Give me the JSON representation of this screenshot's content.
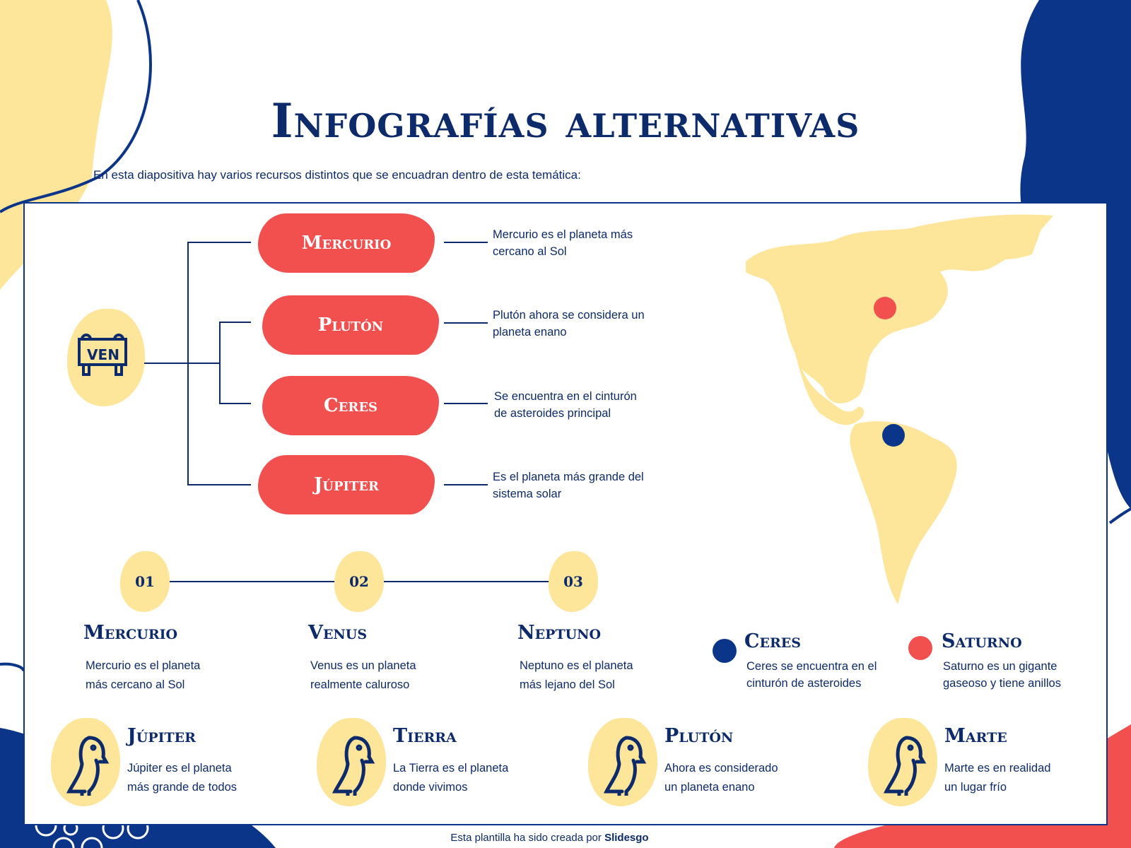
{
  "title": "Infografías alternativas",
  "subtitle": "En esta diapositiva hay varios recursos distintos que se encuadran dentro de esta temática:",
  "badge": {
    "label": "VEN",
    "icon": "sign-board-icon"
  },
  "tree": [
    {
      "label": "Mercurio",
      "desc": [
        "Mercurio es el planeta más",
        "cercano al Sol"
      ]
    },
    {
      "label": "Plutón",
      "desc": [
        "Plutón ahora se considera un",
        "planeta enano"
      ]
    },
    {
      "label": "Ceres",
      "desc": [
        "Se encuentra en el cinturón",
        "de asteroides principal"
      ]
    },
    {
      "label": "Júpiter",
      "desc": [
        "Es el planeta más grande del",
        "sistema solar"
      ]
    }
  ],
  "timeline": [
    {
      "num": "01",
      "title": "Mercurio",
      "desc": [
        "Mercurio es el planeta",
        "más cercano al Sol"
      ]
    },
    {
      "num": "02",
      "title": "Venus",
      "desc": [
        "Venus es un planeta",
        "realmente caluroso"
      ]
    },
    {
      "num": "03",
      "title": "Neptuno",
      "desc": [
        "Neptuno es el planeta",
        "más lejano del Sol"
      ]
    }
  ],
  "legend": [
    {
      "title": "Ceres",
      "color": "#0b3588",
      "desc": [
        "Ceres se encuentra en el",
        "cinturón de asteroides"
      ]
    },
    {
      "title": "Saturno",
      "color": "#f24f4f",
      "desc": [
        "Saturno es un gigante",
        "gaseoso y tiene anillos"
      ]
    }
  ],
  "birds": [
    {
      "title": "Júpiter",
      "icon": "cockatoo-icon",
      "desc": [
        "Júpiter es el planeta",
        "más grande de todos"
      ]
    },
    {
      "title": "Tierra",
      "icon": "owl-icon",
      "desc": [
        "La Tierra es el planeta",
        "donde vivimos"
      ]
    },
    {
      "title": "Plutón",
      "icon": "toucan-icon",
      "desc": [
        "Ahora es considerado",
        "un planeta enano"
      ]
    },
    {
      "title": "Marte",
      "icon": "parrot-icon",
      "desc": [
        "Marte es en realidad",
        "un lugar frío"
      ]
    }
  ],
  "footer": {
    "text": "Esta plantilla ha sido creada por ",
    "brand": "Slidesgo"
  },
  "colors": {
    "navy": "#0b3588",
    "yellow": "#fde59a",
    "red": "#f24f4f"
  }
}
